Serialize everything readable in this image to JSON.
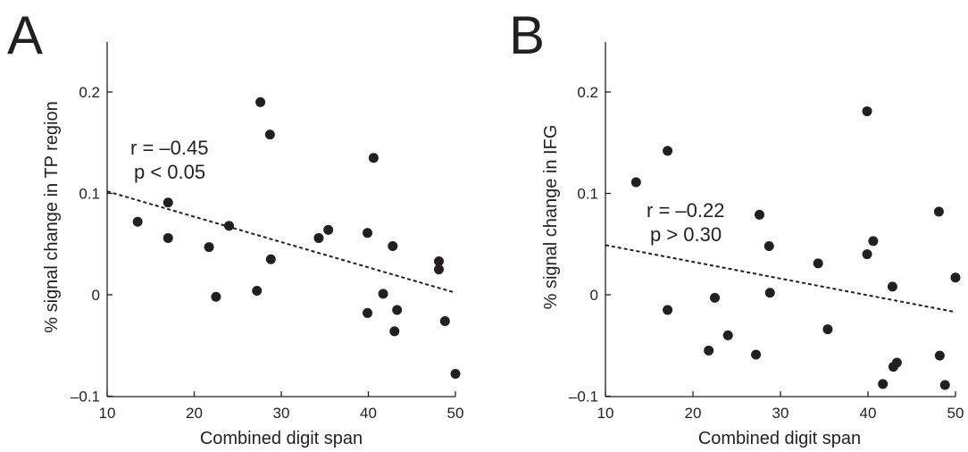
{
  "chart_data": [
    {
      "type": "scatter",
      "panel_label": "A",
      "xlabel": "Combined digit span",
      "ylabel": "% signal change in TP region",
      "xlim": [
        10,
        50
      ],
      "ylim": [
        -0.1,
        0.25
      ],
      "xticks": [
        "10",
        "20",
        "30",
        "40",
        "50"
      ],
      "yticks": [
        "0.2",
        "0.1",
        "0",
        "–0.1"
      ],
      "ytick_values": [
        0.2,
        0.1,
        0,
        -0.1
      ],
      "annotation": [
        "r = –0.45",
        "p < 0.05"
      ],
      "fit_line": {
        "x": [
          10,
          50
        ],
        "y": [
          0.102,
          0.002
        ]
      },
      "points": [
        {
          "x": 13.5,
          "y": 0.072
        },
        {
          "x": 17.0,
          "y": 0.091
        },
        {
          "x": 17.0,
          "y": 0.056
        },
        {
          "x": 21.7,
          "y": 0.047
        },
        {
          "x": 22.5,
          "y": -0.002
        },
        {
          "x": 24.0,
          "y": 0.068
        },
        {
          "x": 27.2,
          "y": 0.004
        },
        {
          "x": 27.6,
          "y": 0.19
        },
        {
          "x": 28.7,
          "y": 0.158
        },
        {
          "x": 28.8,
          "y": 0.035
        },
        {
          "x": 34.3,
          "y": 0.056
        },
        {
          "x": 35.4,
          "y": 0.064
        },
        {
          "x": 39.9,
          "y": 0.061
        },
        {
          "x": 39.9,
          "y": -0.018
        },
        {
          "x": 40.6,
          "y": 0.135
        },
        {
          "x": 41.7,
          "y": 0.001
        },
        {
          "x": 42.8,
          "y": 0.048
        },
        {
          "x": 43.0,
          "y": -0.036
        },
        {
          "x": 43.3,
          "y": -0.015
        },
        {
          "x": 48.1,
          "y": 0.033
        },
        {
          "x": 48.1,
          "y": 0.025
        },
        {
          "x": 48.8,
          "y": -0.026
        },
        {
          "x": 50.0,
          "y": -0.078
        }
      ]
    },
    {
      "type": "scatter",
      "panel_label": "B",
      "xlabel": "Combined digit span",
      "ylabel": "% signal change in IFG",
      "xlim": [
        10,
        50
      ],
      "ylim": [
        -0.1,
        0.25
      ],
      "xticks": [
        "10",
        "20",
        "30",
        "40",
        "50"
      ],
      "yticks": [
        "0.2",
        "0.1",
        "0",
        "–0.1"
      ],
      "ytick_values": [
        0.2,
        0.1,
        0,
        -0.1
      ],
      "annotation": [
        "r = –0.22",
        "p > 0.30"
      ],
      "fit_line": {
        "x": [
          10,
          50
        ],
        "y": [
          0.049,
          -0.017
        ]
      },
      "points": [
        {
          "x": 13.5,
          "y": 0.111
        },
        {
          "x": 17.1,
          "y": 0.142
        },
        {
          "x": 17.1,
          "y": -0.015
        },
        {
          "x": 21.8,
          "y": -0.055
        },
        {
          "x": 22.5,
          "y": -0.003
        },
        {
          "x": 24.0,
          "y": -0.04
        },
        {
          "x": 27.2,
          "y": -0.059
        },
        {
          "x": 27.6,
          "y": 0.079
        },
        {
          "x": 28.7,
          "y": 0.048
        },
        {
          "x": 28.8,
          "y": 0.002
        },
        {
          "x": 34.3,
          "y": 0.031
        },
        {
          "x": 35.4,
          "y": -0.034
        },
        {
          "x": 39.9,
          "y": 0.181
        },
        {
          "x": 39.9,
          "y": 0.04
        },
        {
          "x": 40.6,
          "y": 0.053
        },
        {
          "x": 41.7,
          "y": -0.088
        },
        {
          "x": 42.8,
          "y": 0.008
        },
        {
          "x": 42.9,
          "y": -0.071
        },
        {
          "x": 43.3,
          "y": -0.067
        },
        {
          "x": 48.1,
          "y": 0.082
        },
        {
          "x": 48.2,
          "y": -0.06
        },
        {
          "x": 48.8,
          "y": -0.089
        },
        {
          "x": 50.0,
          "y": 0.017
        }
      ]
    }
  ],
  "colors": {
    "ink": "#231f20",
    "background": "#ffffff"
  }
}
